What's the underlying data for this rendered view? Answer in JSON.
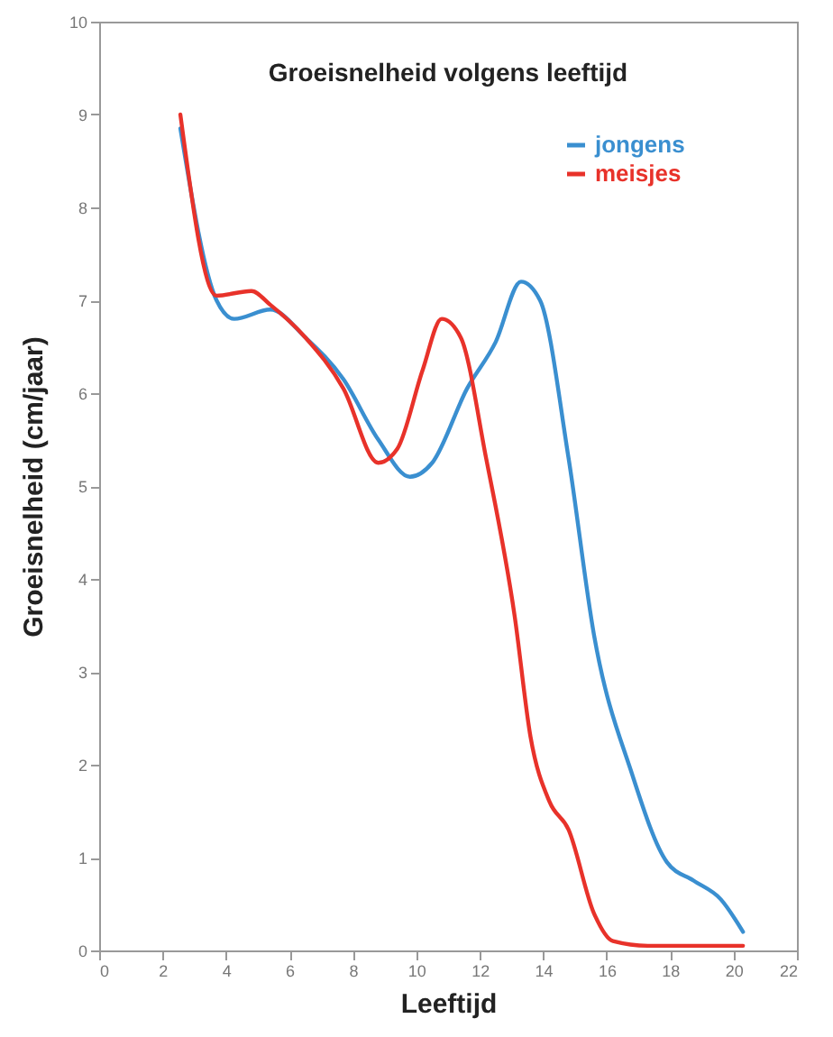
{
  "chart_data": {
    "type": "line",
    "title": "Groeisnelheid volgens leeftijd",
    "xlabel": "Leeftijd",
    "ylabel": "Groeisnelheid (cm/jaar)",
    "series": [
      {
        "name": "jongens",
        "color": "#3a8fd0",
        "x": [
          2.56,
          3.7,
          4.26,
          5.4,
          6.5,
          7.7,
          8.8,
          9.8,
          10.5,
          11.6,
          12.5,
          13.3,
          13.9,
          14.8,
          15.6,
          16.8,
          17.9,
          18.75,
          19.6,
          20.3
        ],
        "values": [
          8.85,
          7.0,
          6.8,
          6.9,
          6.6,
          6.15,
          5.5,
          5.1,
          5.25,
          6.05,
          6.55,
          7.2,
          7.0,
          5.3,
          3.4,
          1.9,
          0.95,
          0.75,
          0.55,
          0.2
        ]
      },
      {
        "name": "meisjes",
        "color": "#e8322a",
        "x": [
          2.56,
          3.7,
          4.8,
          5.4,
          6.5,
          7.7,
          8.8,
          9.4,
          10.2,
          10.8,
          11.4,
          12.2,
          13.1,
          13.6,
          14.2,
          14.8,
          15.6,
          16.2,
          17.3,
          20.3
        ],
        "values": [
          9.0,
          7.05,
          7.1,
          6.95,
          6.6,
          6.05,
          5.25,
          5.4,
          6.25,
          6.8,
          6.6,
          5.3,
          3.6,
          2.3,
          1.6,
          1.3,
          0.4,
          0.1,
          0.05,
          0.05
        ]
      }
    ],
    "xlim": [
      0,
      22
    ],
    "xticks": [
      0,
      2,
      4,
      6,
      8,
      10,
      12,
      14,
      16,
      18,
      20,
      22
    ],
    "ylim": [
      0,
      10
    ],
    "yticks": [
      0,
      1,
      2,
      3,
      4,
      5,
      6,
      7,
      8,
      9,
      10
    ],
    "grid": false,
    "legend": "top right",
    "marker": "none",
    "line_style": "solid"
  }
}
